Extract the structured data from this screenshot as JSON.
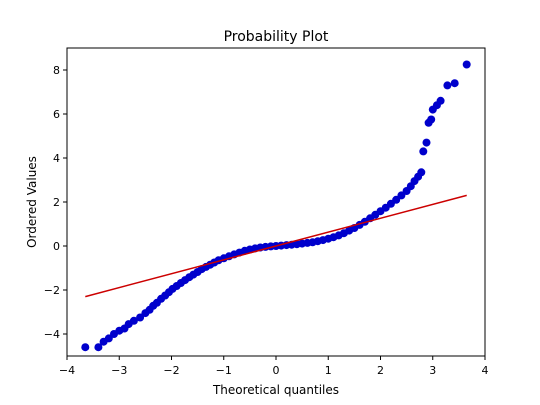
{
  "chart_data": {
    "type": "scatter",
    "title": "Probability Plot",
    "xlabel": "Theoretical quantiles",
    "ylabel": "Ordered Values",
    "xlim": [
      -4,
      4
    ],
    "ylim": [
      -5,
      9
    ],
    "xticks": [
      -4,
      -3,
      -2,
      -1,
      0,
      1,
      2,
      3,
      4
    ],
    "yticks": [
      -4,
      -2,
      0,
      2,
      4,
      6,
      8
    ],
    "xtick_labels": [
      "−4",
      "−3",
      "−2",
      "−1",
      "0",
      "1",
      "2",
      "3",
      "4"
    ],
    "ytick_labels": [
      "−4",
      "−2",
      "0",
      "2",
      "4",
      "6",
      "8"
    ],
    "grid": false,
    "series": [
      {
        "kind": "points",
        "color": "#0000cc",
        "points": [
          [
            -3.65,
            -4.6
          ],
          [
            -3.4,
            -4.6
          ],
          [
            -3.3,
            -4.35
          ],
          [
            -3.2,
            -4.2
          ],
          [
            -3.1,
            -4.0
          ],
          [
            -3.0,
            -3.85
          ],
          [
            -2.9,
            -3.75
          ],
          [
            -2.82,
            -3.55
          ],
          [
            -2.72,
            -3.4
          ],
          [
            -2.6,
            -3.25
          ],
          [
            -2.5,
            -3.05
          ],
          [
            -2.42,
            -2.9
          ],
          [
            -2.35,
            -2.72
          ],
          [
            -2.28,
            -2.58
          ],
          [
            -2.2,
            -2.4
          ],
          [
            -2.12,
            -2.25
          ],
          [
            -2.05,
            -2.1
          ],
          [
            -1.98,
            -1.95
          ],
          [
            -1.9,
            -1.82
          ],
          [
            -1.82,
            -1.68
          ],
          [
            -1.74,
            -1.55
          ],
          [
            -1.66,
            -1.42
          ],
          [
            -1.58,
            -1.3
          ],
          [
            -1.5,
            -1.18
          ],
          [
            -1.42,
            -1.05
          ],
          [
            -1.34,
            -0.95
          ],
          [
            -1.26,
            -0.85
          ],
          [
            -1.18,
            -0.75
          ],
          [
            -1.1,
            -0.65
          ],
          [
            -1.0,
            -0.56
          ],
          [
            -0.9,
            -0.47
          ],
          [
            -0.8,
            -0.38
          ],
          [
            -0.7,
            -0.3
          ],
          [
            -0.6,
            -0.22
          ],
          [
            -0.5,
            -0.16
          ],
          [
            -0.4,
            -0.11
          ],
          [
            -0.3,
            -0.07
          ],
          [
            -0.2,
            -0.04
          ],
          [
            -0.1,
            -0.02
          ],
          [
            0.0,
            0.0
          ],
          [
            0.1,
            0.02
          ],
          [
            0.2,
            0.04
          ],
          [
            0.3,
            0.06
          ],
          [
            0.4,
            0.08
          ],
          [
            0.5,
            0.11
          ],
          [
            0.6,
            0.14
          ],
          [
            0.7,
            0.17
          ],
          [
            0.8,
            0.22
          ],
          [
            0.9,
            0.27
          ],
          [
            1.0,
            0.33
          ],
          [
            1.1,
            0.4
          ],
          [
            1.2,
            0.48
          ],
          [
            1.3,
            0.58
          ],
          [
            1.4,
            0.7
          ],
          [
            1.5,
            0.82
          ],
          [
            1.6,
            0.96
          ],
          [
            1.7,
            1.1
          ],
          [
            1.8,
            1.26
          ],
          [
            1.9,
            1.42
          ],
          [
            2.0,
            1.58
          ],
          [
            2.1,
            1.74
          ],
          [
            2.2,
            1.92
          ],
          [
            2.3,
            2.1
          ],
          [
            2.4,
            2.3
          ],
          [
            2.5,
            2.5
          ],
          [
            2.58,
            2.72
          ],
          [
            2.65,
            2.95
          ],
          [
            2.72,
            3.15
          ],
          [
            2.78,
            3.35
          ],
          [
            2.82,
            4.3
          ],
          [
            2.88,
            4.7
          ],
          [
            2.92,
            5.6
          ],
          [
            2.97,
            5.75
          ],
          [
            3.0,
            6.2
          ],
          [
            3.08,
            6.4
          ],
          [
            3.15,
            6.6
          ],
          [
            3.28,
            7.3
          ],
          [
            3.42,
            7.4
          ],
          [
            3.65,
            8.25
          ]
        ]
      },
      {
        "kind": "line",
        "color": "#cc0000",
        "x": [
          -3.65,
          3.65
        ],
        "y": [
          -2.3,
          2.3
        ]
      }
    ]
  }
}
